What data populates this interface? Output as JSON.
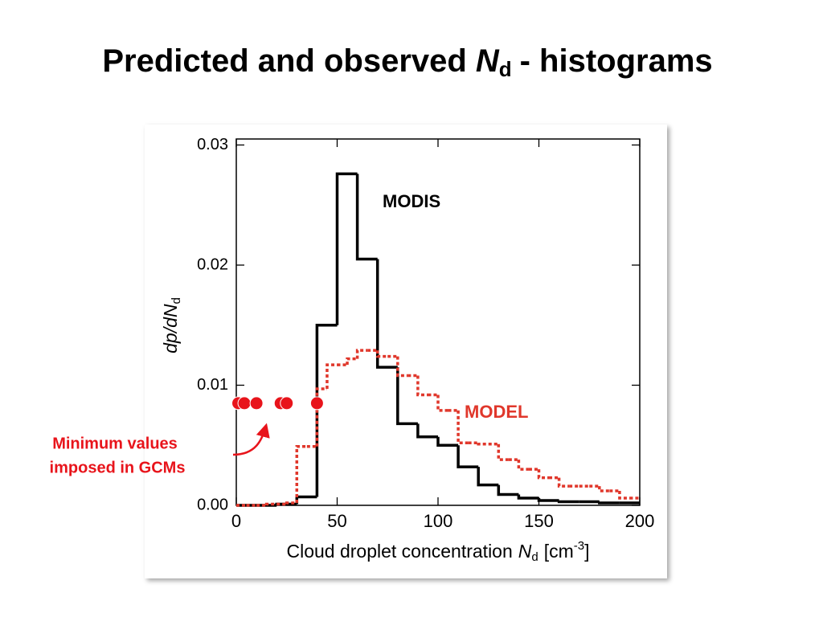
{
  "title": [
    "Predicted and observed",
    "N",
    "d",
    "- histograms"
  ],
  "chart_data": {
    "type": "histogram",
    "ylabel": [
      "dp/dN",
      "d"
    ],
    "xlabel": [
      "Cloud droplet concentration",
      "N",
      "d",
      "[cm",
      "-3",
      "]"
    ],
    "xlim": [
      0,
      200
    ],
    "xticks": [
      0,
      50,
      100,
      150,
      200
    ],
    "ylim": [
      0,
      0.0305
    ],
    "yticks": [
      {
        "value": 0,
        "label": "0.00"
      },
      0.01,
      0.02,
      0.03
    ],
    "series": [
      {
        "name": "MODIS",
        "color": "#000000",
        "style": "solid",
        "bins": [
          0,
          10,
          20,
          30,
          40,
          50,
          60,
          70,
          80,
          90,
          100,
          110,
          120,
          130,
          140,
          150,
          160,
          170,
          180,
          190,
          200
        ],
        "values": [
          0,
          0,
          0.0001,
          0.0007,
          0.015,
          0.0276,
          0.0205,
          0.0115,
          0.0068,
          0.0057,
          0.005,
          0.0032,
          0.0017,
          0.0009,
          0.0006,
          0.0004,
          0.0003,
          0.0003,
          0.0002,
          0.0002
        ]
      },
      {
        "name": "MODEL",
        "color": "#e0372b",
        "style": "dotted",
        "bins": [
          0,
          5,
          10,
          15,
          20,
          25,
          30,
          35,
          40,
          45,
          50,
          55,
          60,
          65,
          70,
          75,
          80,
          85,
          90,
          95,
          100,
          105,
          110,
          115,
          120,
          125,
          130,
          135,
          140,
          145,
          150,
          155,
          160,
          165,
          170,
          175,
          180,
          185,
          190,
          195,
          200
        ],
        "values": [
          0,
          0,
          0,
          0.0001,
          0.0001,
          0.0002,
          0.0049,
          0.0049,
          0.0097,
          0.0117,
          0.0117,
          0.0122,
          0.0129,
          0.0129,
          0.0124,
          0.0124,
          0.0108,
          0.0108,
          0.0092,
          0.0092,
          0.0079,
          0.0079,
          0.0052,
          0.0052,
          0.0051,
          0.0051,
          0.0038,
          0.0038,
          0.003,
          0.003,
          0.0023,
          0.0023,
          0.0016,
          0.0016,
          0.0016,
          0.0016,
          0.0012,
          0.0012,
          0.0006,
          0.0006
        ]
      }
    ],
    "points": {
      "color": "#e8141b",
      "x": [
        1,
        4,
        10,
        22,
        25,
        40
      ],
      "y": [
        0.0085,
        0.0085,
        0.0085,
        0.0085,
        0.0085,
        0.0085
      ]
    },
    "annotation": [
      "Minimum values",
      "imposed in GCMs"
    ]
  }
}
